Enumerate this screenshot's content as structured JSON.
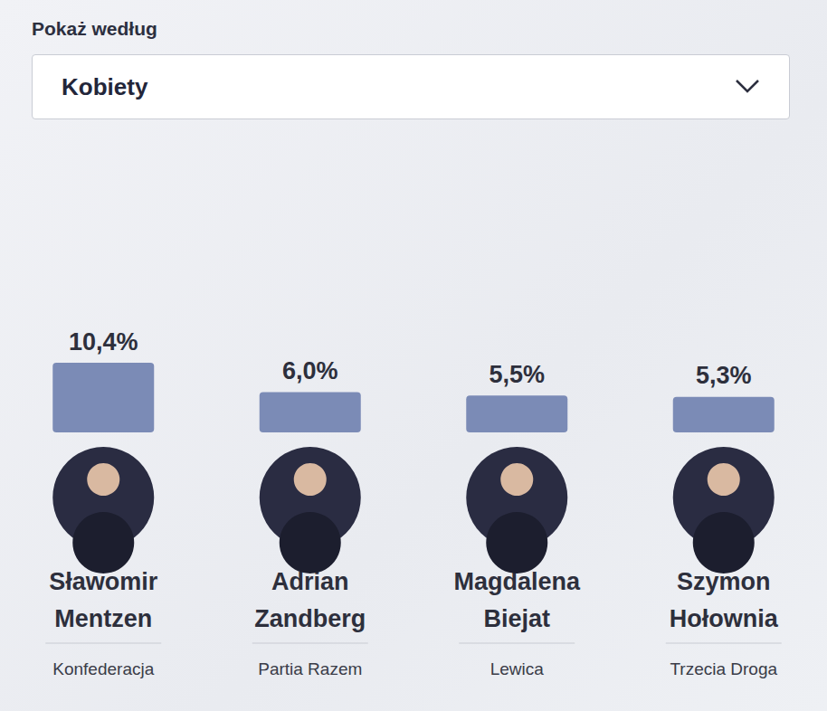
{
  "filter": {
    "label": "Pokaż według",
    "selected": "Kobiety"
  },
  "chart_data": {
    "type": "bar",
    "categories": [
      "Sławomir Mentzen",
      "Adrian Zandberg",
      "Magdalena Biejat",
      "Szymon Hołownia"
    ],
    "parties": [
      "Konfederacja",
      "Partia Razem",
      "Lewica",
      "Trzecia Droga"
    ],
    "values": [
      10.4,
      6.0,
      5.5,
      5.3
    ],
    "value_labels": [
      "10,4%",
      "6,0%",
      "5,5%",
      "5,3%"
    ],
    "color": "#7b8bb6",
    "ylim": [
      0,
      40
    ],
    "yticks": [
      0,
      10,
      20,
      30,
      40
    ],
    "grid": false,
    "tick_labels": false,
    "data_labels": true
  }
}
